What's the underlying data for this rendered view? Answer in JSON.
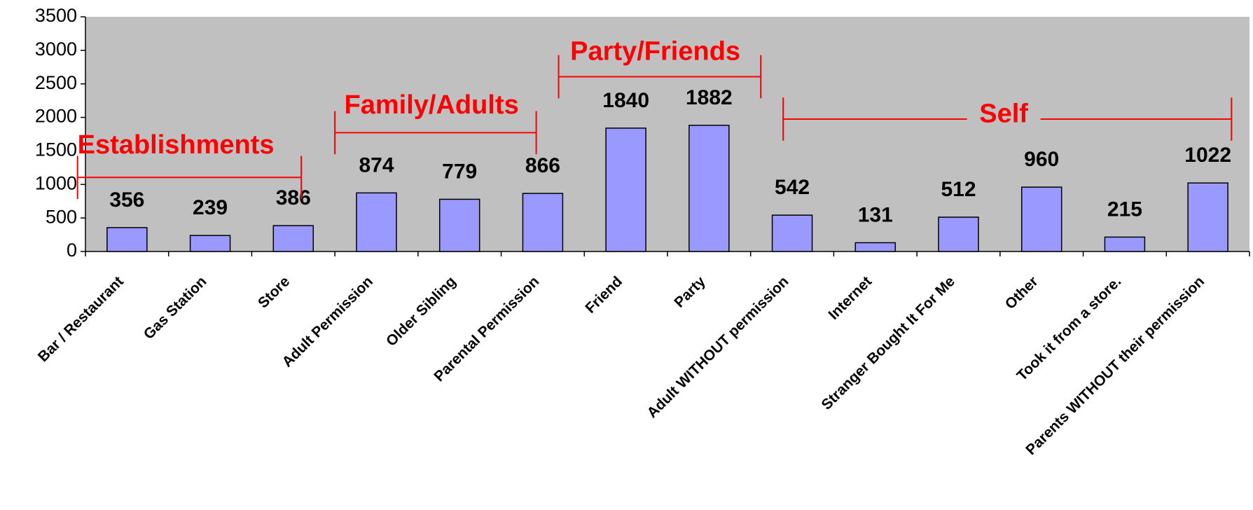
{
  "chart_data": {
    "type": "bar",
    "categories": [
      "Bar / Restaurant",
      "Gas Station",
      "Store",
      "Adult Permission",
      "Older Sibling",
      "Parental Permission",
      "Friend",
      "Party",
      "Adult WITHOUT permission",
      "Internet",
      "Stranger Bought It For Me",
      "Other",
      "Took it from a store.",
      "Parents WITHOUT their permission"
    ],
    "values": [
      356,
      239,
      386,
      874,
      779,
      866,
      1840,
      1882,
      542,
      131,
      512,
      960,
      215,
      1022
    ],
    "color": "#9999ff",
    "ylim": [
      0,
      3500
    ],
    "yticks": [
      0,
      500,
      1000,
      1500,
      2000,
      2500,
      3000,
      3500
    ],
    "annotations": [
      {
        "text": "Establishments"
      },
      {
        "text": "Family/Adults"
      },
      {
        "text": "Party/Friends"
      },
      {
        "text": "Self"
      }
    ]
  }
}
